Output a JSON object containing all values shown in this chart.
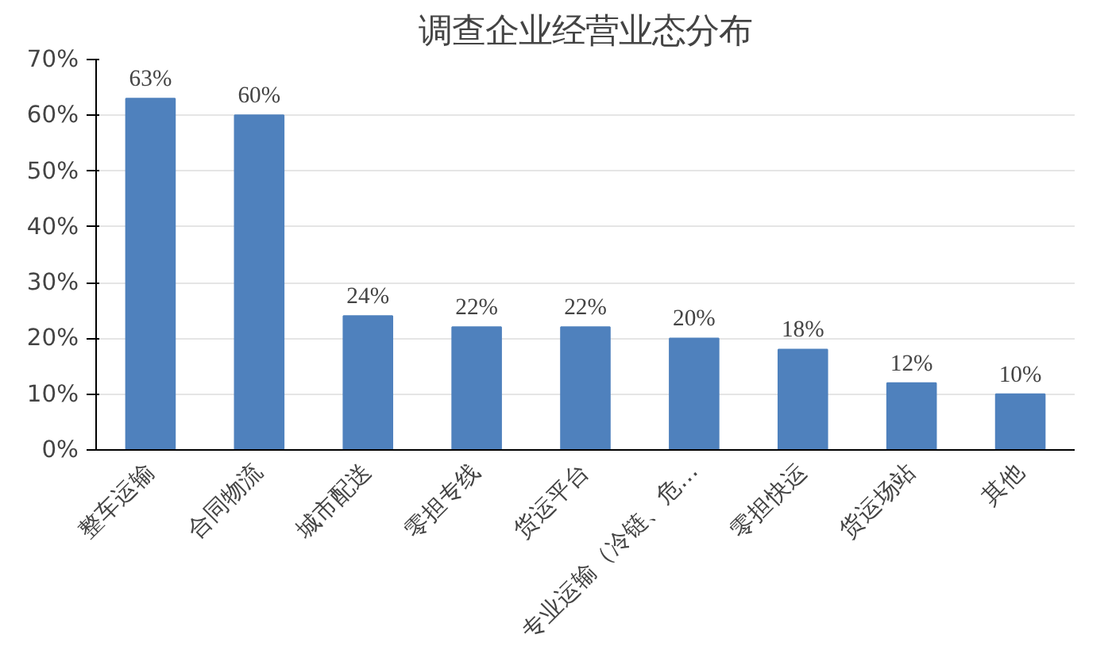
{
  "chart_data": {
    "type": "bar",
    "title": "调查企业经营业态分布",
    "categories": [
      "整车运输",
      "合同物流",
      "城市配送",
      "零担专线",
      "货运平台",
      "专业运输（冷链、危…",
      "零担快运",
      "货运场站",
      "其他"
    ],
    "values": [
      63,
      60,
      24,
      22,
      22,
      20,
      18,
      12,
      10
    ],
    "value_labels": [
      "63%",
      "60%",
      "24%",
      "22%",
      "22%",
      "20%",
      "18%",
      "12%",
      "10%"
    ],
    "color": "#4f81bd",
    "ylim": [
      0,
      70
    ],
    "yticks": [
      {
        "value": 0,
        "label": "0%"
      },
      {
        "value": 10,
        "label": "10%"
      },
      {
        "value": 20,
        "label": "20%"
      },
      {
        "value": 30,
        "label": "30%"
      },
      {
        "value": 40,
        "label": "40%"
      },
      {
        "value": 50,
        "label": "50%"
      },
      {
        "value": 60,
        "label": "60%"
      },
      {
        "value": 70,
        "label": "70%"
      }
    ],
    "grid": "y"
  }
}
